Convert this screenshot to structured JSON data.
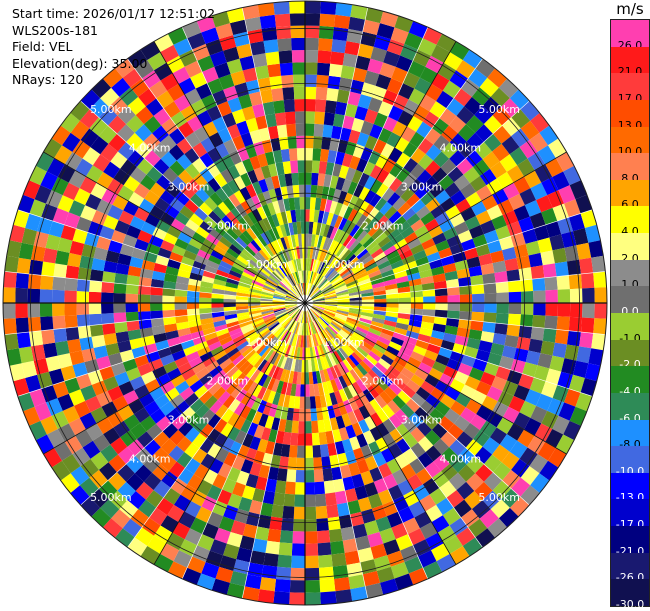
{
  "info": {
    "start_time": "Start time: 2026/01/17 12:51:02",
    "device": "WLS200s-181",
    "field": "Field: VEL",
    "elevation": "Elevation(deg): 35.00",
    "nrays": "NRays: 120"
  },
  "colorbar": {
    "unit": "m/s",
    "levels": [
      {
        "label": "26.0",
        "color": "#ff3fb0"
      },
      {
        "label": "21.0",
        "color": "#ff1a1a"
      },
      {
        "label": "17.0",
        "color": "#ff3b3b"
      },
      {
        "label": "13.0",
        "color": "#ff4d00"
      },
      {
        "label": "10.0",
        "color": "#ff6a00"
      },
      {
        "label": "8.0",
        "color": "#ff8050"
      },
      {
        "label": "6.0",
        "color": "#ffa500"
      },
      {
        "label": "4.0",
        "color": "#ffff00"
      },
      {
        "label": "2.0",
        "color": "#ffff80"
      },
      {
        "label": "1.0",
        "color": "#8c8c8c"
      },
      {
        "label": "0.0",
        "color": "#6f6f6f"
      },
      {
        "label": "-1.0",
        "color": "#9acd32"
      },
      {
        "label": "-2.0",
        "color": "#6b8e23"
      },
      {
        "label": "-4.0",
        "color": "#228b22"
      },
      {
        "label": "-6.0",
        "color": "#2e8b57"
      },
      {
        "label": "-8.0",
        "color": "#1e90ff"
      },
      {
        "label": "-10.0",
        "color": "#4169e1"
      },
      {
        "label": "-13.0",
        "color": "#0000ff"
      },
      {
        "label": "-17.0",
        "color": "#0000cd"
      },
      {
        "label": "-21.0",
        "color": "#000080"
      },
      {
        "label": "-26.0",
        "color": "#191970"
      },
      {
        "label": "-30.0",
        "color": "#101050"
      }
    ]
  },
  "chart_data": {
    "type": "heatmap",
    "projection": "polar-ppi",
    "nrays": 120,
    "range_rings_km": [
      "1.00km",
      "2.00km",
      "3.00km",
      "4.00km",
      "5.00km"
    ],
    "inner_field": "mostly yellow / grey near center, green/grey north, orange/red south",
    "outer_field": "noisy multicolor velocity values across all colorbar levels"
  }
}
